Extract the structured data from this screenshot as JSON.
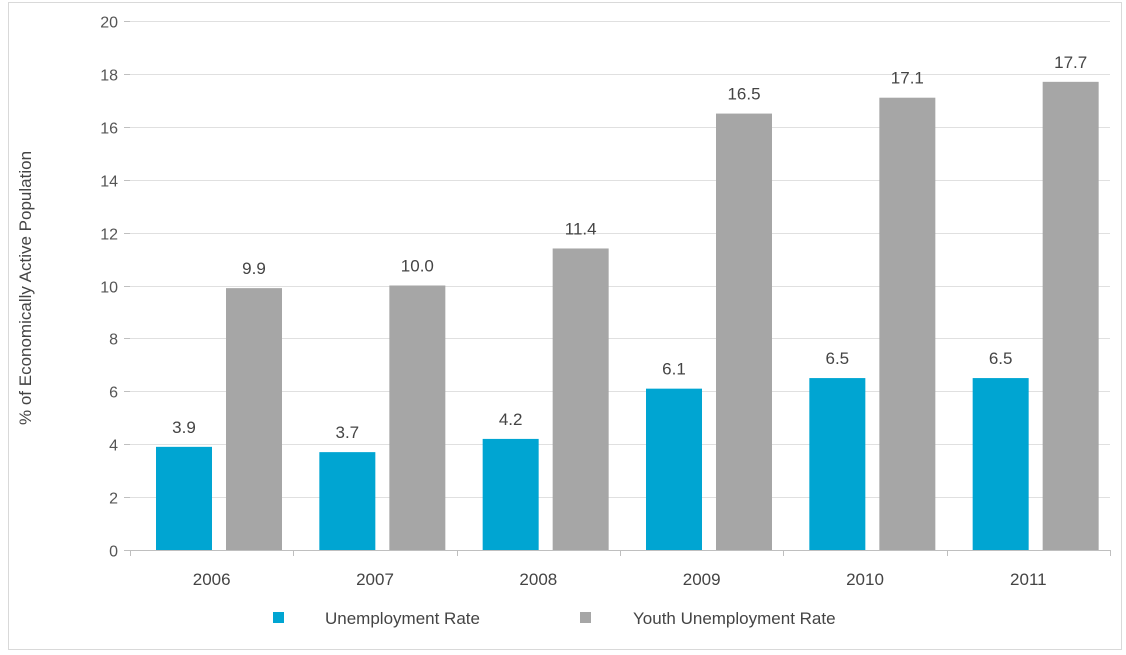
{
  "chart_data": {
    "type": "bar",
    "ylabel": "% of Economically Active Population",
    "xlabel": "",
    "ylim": [
      0,
      20
    ],
    "yticks": [
      0,
      2,
      4,
      6,
      8,
      10,
      12,
      14,
      16,
      18,
      20
    ],
    "grid": true,
    "legend_position": "bottom",
    "categories": [
      "2006",
      "2007",
      "2008",
      "2009",
      "2010",
      "2011"
    ],
    "series": [
      {
        "name": "Unemployment Rate",
        "color": "#00a5d2",
        "values": [
          3.9,
          3.7,
          4.2,
          6.1,
          6.5,
          6.5
        ],
        "labels": [
          "3.9",
          "3.7",
          "4.2",
          "6.1",
          "6.5",
          "6.5"
        ]
      },
      {
        "name": "Youth Unemployment Rate",
        "color": "#a6a6a6",
        "values": [
          9.9,
          10.0,
          11.4,
          16.5,
          17.1,
          17.7
        ],
        "labels": [
          "9.9",
          "10.0",
          "11.4",
          "16.5",
          "17.1",
          "17.7"
        ]
      }
    ]
  }
}
